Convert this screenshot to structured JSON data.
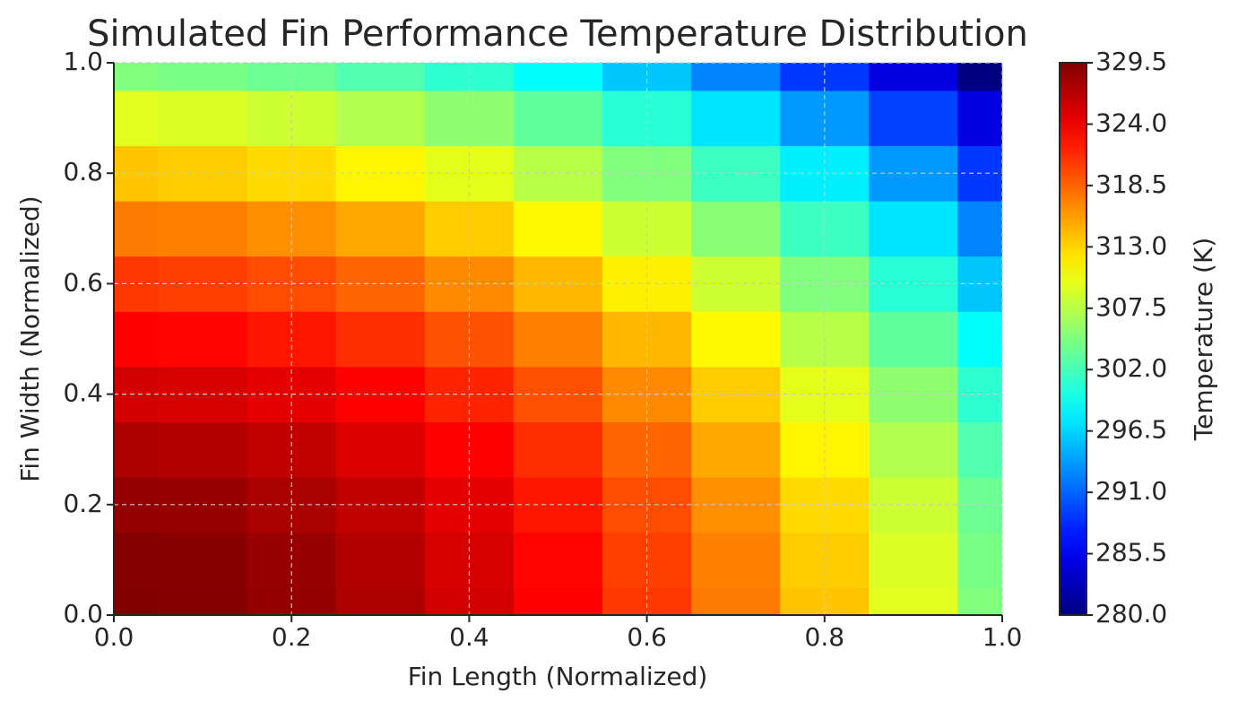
{
  "chart_data": {
    "type": "contourf",
    "title": "Simulated Fin Performance Temperature Distribution",
    "x_label": "Fin Length (Normalized)",
    "y_label": "Fin Width (Normalized)",
    "colorbar_label": "Temperature (K)",
    "colormap": "jet",
    "grid": true,
    "x": [
      0,
      0.1,
      0.2,
      0.3,
      0.4,
      0.5,
      0.6,
      0.7,
      0.8,
      0.9,
      1
    ],
    "y": [
      0,
      0.1,
      0.2,
      0.3,
      0.4,
      0.5,
      0.6,
      0.7,
      0.8,
      0.9,
      1
    ],
    "z": [
      [
        329.5,
        329.3,
        328.5,
        327.3,
        325.5,
        323.3,
        320.6,
        317.4,
        313.7,
        309.5,
        304.8
      ],
      [
        329.3,
        329.0,
        328.3,
        327.0,
        325.3,
        323.1,
        320.3,
        317.1,
        313.4,
        309.2,
        304.5
      ],
      [
        328.5,
        328.3,
        327.5,
        326.3,
        324.6,
        322.3,
        319.6,
        316.4,
        312.7,
        308.5,
        303.8
      ],
      [
        327.3,
        327.0,
        326.3,
        325.0,
        323.3,
        321.1,
        318.4,
        315.1,
        311.4,
        307.2,
        302.5
      ],
      [
        325.5,
        325.3,
        324.6,
        323.3,
        321.6,
        319.4,
        316.6,
        313.4,
        309.7,
        305.5,
        300.8
      ],
      [
        323.3,
        323.1,
        322.3,
        321.1,
        319.4,
        317.1,
        314.4,
        311.2,
        307.5,
        303.3,
        298.6
      ],
      [
        320.6,
        320.3,
        319.6,
        318.4,
        316.6,
        314.4,
        311.7,
        308.5,
        304.8,
        300.5,
        295.8
      ],
      [
        317.4,
        317.1,
        316.4,
        315.1,
        313.4,
        311.2,
        308.5,
        305.2,
        301.5,
        297.3,
        292.6
      ],
      [
        313.7,
        313.4,
        312.7,
        311.4,
        309.7,
        307.5,
        304.8,
        301.5,
        297.8,
        293.6,
        288.9
      ],
      [
        309.5,
        309.2,
        308.5,
        307.2,
        305.5,
        303.3,
        300.5,
        297.3,
        293.6,
        289.4,
        284.7
      ],
      [
        304.8,
        304.5,
        303.8,
        302.5,
        300.8,
        298.6,
        295.8,
        292.6,
        288.9,
        284.7,
        280.0
      ]
    ],
    "xlim": [
      0,
      1
    ],
    "ylim": [
      0,
      1
    ],
    "xticks": [
      {
        "value": 0,
        "label": "0.0"
      },
      0.2,
      0.4,
      0.6,
      0.8,
      {
        "value": 1,
        "label": "1.0"
      }
    ],
    "yticks": [
      {
        "value": 0,
        "label": "0.0"
      },
      0.2,
      0.4,
      0.6,
      0.8,
      {
        "value": 1,
        "label": "1.0"
      }
    ],
    "zlim": [
      280,
      329.5
    ],
    "zticks": [
      {
        "value": 280,
        "label": "280.0"
      },
      285.5,
      {
        "value": 291,
        "label": "291.0"
      },
      296.5,
      {
        "value": 302,
        "label": "302.0"
      },
      307.5,
      {
        "value": 313,
        "label": "313.0"
      },
      318.5,
      {
        "value": 324,
        "label": "324.0"
      },
      329.5
    ]
  }
}
